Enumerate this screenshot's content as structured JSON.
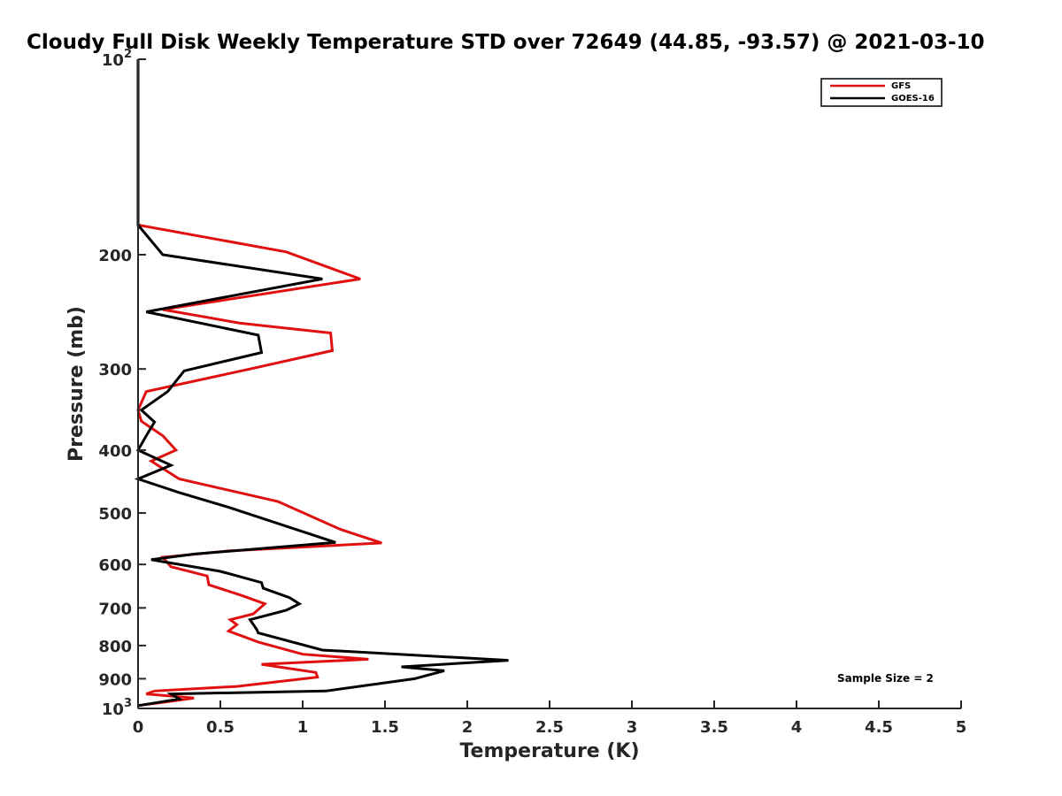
{
  "chart_data": {
    "type": "line",
    "title": "Cloudy Full Disk Weekly Temperature STD over 72649 (44.85, -93.57) @ 2021-03-10",
    "xlabel": "Temperature (K)",
    "ylabel": "Pressure (mb)",
    "xlim": [
      0,
      5
    ],
    "ylim": [
      100,
      1000
    ],
    "y_scale": "log",
    "y_reversed": true,
    "x_ticks": [
      "0",
      "0.5",
      "1",
      "1.5",
      "2",
      "2.5",
      "3",
      "3.5",
      "4",
      "4.5",
      "5"
    ],
    "y_ticks": [
      {
        "value": 100,
        "base": "10",
        "exp": "2"
      },
      {
        "value": 200,
        "label": "200"
      },
      {
        "value": 300,
        "label": "300"
      },
      {
        "value": 400,
        "label": "400"
      },
      {
        "value": 500,
        "label": "500"
      },
      {
        "value": 600,
        "label": "600"
      },
      {
        "value": 700,
        "label": "700"
      },
      {
        "value": 800,
        "label": "800"
      },
      {
        "value": 900,
        "label": "900"
      },
      {
        "value": 1000,
        "base": "10",
        "exp": "3"
      }
    ],
    "grid": false,
    "legend_position": "top-right",
    "annotation": "Sample Size = 2",
    "series": [
      {
        "name": "GFS",
        "color": "#e01010",
        "points": [
          [
            0,
            100
          ],
          [
            0,
            180
          ],
          [
            0.9,
            198
          ],
          [
            1.35,
            218
          ],
          [
            0.15,
            243
          ],
          [
            0.62,
            255
          ],
          [
            1.17,
            264
          ],
          [
            1.18,
            281
          ],
          [
            0.68,
            300
          ],
          [
            0.05,
            325
          ],
          [
            0,
            347
          ],
          [
            0.02,
            361
          ],
          [
            0.15,
            380
          ],
          [
            0.23,
            400
          ],
          [
            0.08,
            416
          ],
          [
            0.25,
            443
          ],
          [
            0.85,
            480
          ],
          [
            1.23,
            530
          ],
          [
            1.48,
            556
          ],
          [
            0.55,
            572
          ],
          [
            0.15,
            585
          ],
          [
            0.2,
            605
          ],
          [
            0.42,
            625
          ],
          [
            0.43,
            645
          ],
          [
            0.63,
            670
          ],
          [
            0.77,
            690
          ],
          [
            0.7,
            715
          ],
          [
            0.56,
            730
          ],
          [
            0.6,
            743
          ],
          [
            0.55,
            760
          ],
          [
            0.73,
            790
          ],
          [
            1.0,
            825
          ],
          [
            1.4,
            840
          ],
          [
            0.75,
            855
          ],
          [
            1.08,
            880
          ],
          [
            1.09,
            895
          ],
          [
            0.6,
            925
          ],
          [
            0.1,
            940
          ],
          [
            0.05,
            950
          ],
          [
            0.34,
            964
          ],
          [
            0.2,
            975
          ],
          [
            0,
            990
          ]
        ]
      },
      {
        "name": "GOES-16",
        "color": "#000000",
        "points": [
          [
            0,
            100
          ],
          [
            0,
            180
          ],
          [
            0.15,
            200
          ],
          [
            1.12,
            218
          ],
          [
            0.05,
            245
          ],
          [
            0.73,
            266
          ],
          [
            0.75,
            283
          ],
          [
            0.28,
            302
          ],
          [
            0.18,
            325
          ],
          [
            0.02,
            347
          ],
          [
            0.1,
            362
          ],
          [
            0.05,
            380
          ],
          [
            0,
            400
          ],
          [
            0.2,
            422
          ],
          [
            0,
            443
          ],
          [
            0.25,
            465
          ],
          [
            0.55,
            490
          ],
          [
            1.2,
            555
          ],
          [
            0.35,
            578
          ],
          [
            0.08,
            590
          ],
          [
            0.5,
            615
          ],
          [
            0.75,
            640
          ],
          [
            0.76,
            653
          ],
          [
            0.92,
            675
          ],
          [
            0.98,
            690
          ],
          [
            0.9,
            706
          ],
          [
            0.68,
            730
          ],
          [
            0.72,
            755
          ],
          [
            0.73,
            765
          ],
          [
            1.12,
            813
          ],
          [
            2.25,
            843
          ],
          [
            1.6,
            863
          ],
          [
            1.86,
            875
          ],
          [
            1.68,
            900
          ],
          [
            1.14,
            940
          ],
          [
            0.2,
            950
          ],
          [
            0.25,
            967
          ],
          [
            0,
            990
          ]
        ]
      }
    ]
  }
}
